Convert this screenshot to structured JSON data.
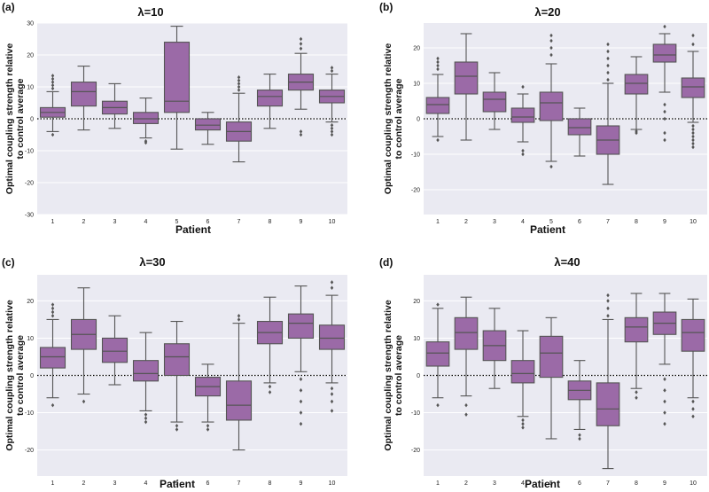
{
  "colors": {
    "box": "#9b6aa7",
    "edge": "#555555",
    "plot_bg": "#eaeaf2",
    "grid": "#ffffff",
    "text": "#111111"
  },
  "chart_data": [
    {
      "type": "box",
      "panel_label": "(a)",
      "title": "λ=10",
      "xlabel": "Patient",
      "ylabel_line1": "Optimal coupling strength relative",
      "ylabel_line2": "to control average",
      "categories": [
        "1",
        "2",
        "3",
        "4",
        "5",
        "6",
        "7",
        "8",
        "9",
        "10"
      ],
      "yticks": [
        -30,
        -20,
        -10,
        0,
        10,
        20,
        30
      ],
      "ylim": [
        -30,
        30
      ],
      "boxes": [
        {
          "wlo": -4,
          "q1": 0.5,
          "med": 2,
          "q3": 3.5,
          "whi": 8.5,
          "out": [
            -5,
            9.5,
            10.5,
            11.5,
            12.5,
            13.5
          ]
        },
        {
          "wlo": -3.5,
          "q1": 4,
          "med": 8.5,
          "q3": 11.5,
          "whi": 16.5,
          "out": []
        },
        {
          "wlo": -3,
          "q1": 1.5,
          "med": 3.5,
          "q3": 5.5,
          "whi": 11,
          "out": []
        },
        {
          "wlo": -6,
          "q1": -1.5,
          "med": 0,
          "q3": 2,
          "whi": 6.5,
          "out": [
            -7,
            -7.5
          ]
        },
        {
          "wlo": -9.5,
          "q1": 2,
          "med": 5.5,
          "q3": 24,
          "whi": 29,
          "out": []
        },
        {
          "wlo": -8,
          "q1": -3.5,
          "med": -2,
          "q3": 0,
          "whi": 2,
          "out": []
        },
        {
          "wlo": -13.5,
          "q1": -7,
          "med": -4,
          "q3": -1,
          "whi": 8,
          "out": [
            9,
            10,
            11,
            12,
            13
          ]
        },
        {
          "wlo": -3,
          "q1": 4,
          "med": 7,
          "q3": 9,
          "whi": 14,
          "out": []
        },
        {
          "wlo": 3,
          "q1": 9,
          "med": 11.5,
          "q3": 14,
          "whi": 20.5,
          "out": [
            -4,
            -5,
            22,
            23.5,
            25
          ]
        },
        {
          "wlo": -1,
          "q1": 5,
          "med": 7,
          "q3": 9,
          "whi": 14,
          "out": [
            -2,
            -3,
            -4,
            -5,
            15,
            16
          ]
        }
      ]
    },
    {
      "type": "box",
      "panel_label": "(b)",
      "title": "λ=20",
      "xlabel": "Patient",
      "ylabel_line1": "Optimal coupling strength relative",
      "ylabel_line2": "to control average",
      "categories": [
        "1",
        "2",
        "3",
        "4",
        "5",
        "6",
        "7",
        "8",
        "9",
        "10"
      ],
      "yticks": [
        -20,
        -10,
        0,
        10,
        20
      ],
      "ylim": [
        -27,
        27
      ],
      "boxes": [
        {
          "wlo": -5,
          "q1": 1.5,
          "med": 4,
          "q3": 6,
          "whi": 12.5,
          "out": [
            -6,
            14,
            15,
            16,
            17
          ]
        },
        {
          "wlo": -6,
          "q1": 7,
          "med": 12,
          "q3": 16,
          "whi": 24,
          "out": []
        },
        {
          "wlo": -3,
          "q1": 2,
          "med": 5.5,
          "q3": 7.5,
          "whi": 13,
          "out": []
        },
        {
          "wlo": -6.5,
          "q1": -1,
          "med": 0.5,
          "q3": 3,
          "whi": 7,
          "out": [
            -9,
            -10,
            9
          ]
        },
        {
          "wlo": -12,
          "q1": -0.5,
          "med": 4.5,
          "q3": 7.5,
          "whi": 15.5,
          "out": [
            -13.5,
            18,
            20,
            22,
            23.5
          ]
        },
        {
          "wlo": -10.5,
          "q1": -4.5,
          "med": -2.5,
          "q3": 0,
          "whi": 3,
          "out": []
        },
        {
          "wlo": -18.5,
          "q1": -10,
          "med": -6,
          "q3": -2,
          "whi": 10,
          "out": [
            11,
            13,
            15,
            17,
            19,
            21
          ]
        },
        {
          "wlo": -3,
          "q1": 7,
          "med": 10,
          "q3": 12.5,
          "whi": 17.5,
          "out": [
            -3.5,
            -4
          ]
        },
        {
          "wlo": 7.5,
          "q1": 16,
          "med": 18,
          "q3": 21,
          "whi": 24,
          "out": [
            -6,
            -4,
            0,
            2,
            4,
            26
          ]
        },
        {
          "wlo": -1,
          "q1": 6,
          "med": 9,
          "q3": 11.5,
          "whi": 19,
          "out": [
            -2,
            -3,
            -4,
            -5,
            -6,
            -7,
            -8,
            21,
            23.5
          ]
        }
      ]
    },
    {
      "type": "box",
      "panel_label": "(c)",
      "title": "λ=30",
      "xlabel": "Patient",
      "ylabel_line1": "Optimal coupling strength relative",
      "ylabel_line2": "to control average",
      "categories": [
        "1",
        "2",
        "3",
        "4",
        "5",
        "6",
        "7",
        "8",
        "9",
        "10"
      ],
      "yticks": [
        -20,
        -10,
        0,
        10,
        20
      ],
      "ylim": [
        -27,
        27
      ],
      "boxes": [
        {
          "wlo": -6,
          "q1": 2,
          "med": 5,
          "q3": 7.5,
          "whi": 15,
          "out": [
            -8,
            16,
            17,
            18,
            19
          ]
        },
        {
          "wlo": -5,
          "q1": 7,
          "med": 11,
          "q3": 15,
          "whi": 23.5,
          "out": [
            -7
          ]
        },
        {
          "wlo": -2.5,
          "q1": 3.5,
          "med": 6.5,
          "q3": 10,
          "whi": 16,
          "out": []
        },
        {
          "wlo": -9.5,
          "q1": -1.5,
          "med": 0.5,
          "q3": 4,
          "whi": 11.5,
          "out": [
            -10.5,
            -11.5,
            -12.5
          ]
        },
        {
          "wlo": -12.5,
          "q1": 0,
          "med": 5,
          "q3": 8.5,
          "whi": 14.5,
          "out": [
            -13.5,
            -14.5
          ]
        },
        {
          "wlo": -12.5,
          "q1": -5.5,
          "med": -3,
          "q3": -0.5,
          "whi": 3,
          "out": [
            -13.5,
            -14.5
          ]
        },
        {
          "wlo": -20,
          "q1": -12,
          "med": -8,
          "q3": -1.5,
          "whi": 14,
          "out": [
            15,
            16
          ]
        },
        {
          "wlo": -2,
          "q1": 8.5,
          "med": 11.5,
          "q3": 14.5,
          "whi": 21,
          "out": [
            -3,
            -4.5
          ]
        },
        {
          "wlo": 1,
          "q1": 10,
          "med": 14,
          "q3": 16.5,
          "whi": 24,
          "out": [
            -13,
            -10,
            -7,
            -4,
            -1
          ]
        },
        {
          "wlo": -2,
          "q1": 7,
          "med": 10,
          "q3": 13.5,
          "whi": 21.5,
          "out": [
            -3.5,
            -5,
            -7,
            -9.5,
            23.5,
            25
          ]
        }
      ]
    },
    {
      "type": "box",
      "panel_label": "(d)",
      "title": "λ=40",
      "xlabel": "Patient",
      "ylabel_line1": "Optimal coupling strength relative",
      "ylabel_line2": "to control average",
      "categories": [
        "1",
        "2",
        "3",
        "4",
        "5",
        "6",
        "7",
        "8",
        "9",
        "10"
      ],
      "yticks": [
        -20,
        -10,
        0,
        10,
        20
      ],
      "ylim": [
        -27,
        27
      ],
      "boxes": [
        {
          "wlo": -6,
          "q1": 2.5,
          "med": 6,
          "q3": 9,
          "whi": 18,
          "out": [
            -8,
            19
          ]
        },
        {
          "wlo": -5.5,
          "q1": 7,
          "med": 11.5,
          "q3": 15.5,
          "whi": 21,
          "out": [
            -8,
            -10.5
          ]
        },
        {
          "wlo": -3.5,
          "q1": 4,
          "med": 8,
          "q3": 12,
          "whi": 18,
          "out": []
        },
        {
          "wlo": -11,
          "q1": -2,
          "med": 0.5,
          "q3": 4,
          "whi": 12,
          "out": [
            -12,
            -13,
            -14
          ]
        },
        {
          "wlo": -17,
          "q1": -0.5,
          "med": 6,
          "q3": 10.5,
          "whi": 15.5,
          "out": []
        },
        {
          "wlo": -14.5,
          "q1": -6.5,
          "med": -4,
          "q3": -1.5,
          "whi": 4,
          "out": [
            -16,
            -17
          ]
        },
        {
          "wlo": -25,
          "q1": -13.5,
          "med": -9,
          "q3": -2,
          "whi": 15,
          "out": [
            16,
            18,
            20,
            21.5
          ]
        },
        {
          "wlo": -3.5,
          "q1": 9,
          "med": 13,
          "q3": 15.5,
          "whi": 22,
          "out": [
            -4.5,
            -6
          ]
        },
        {
          "wlo": 3,
          "q1": 11,
          "med": 14,
          "q3": 17,
          "whi": 22,
          "out": [
            -13,
            -10,
            -7,
            -4,
            -1
          ]
        },
        {
          "wlo": -6,
          "q1": 6.5,
          "med": 11.5,
          "q3": 15,
          "whi": 20.5,
          "out": [
            -7,
            -9,
            -11
          ]
        }
      ]
    }
  ]
}
